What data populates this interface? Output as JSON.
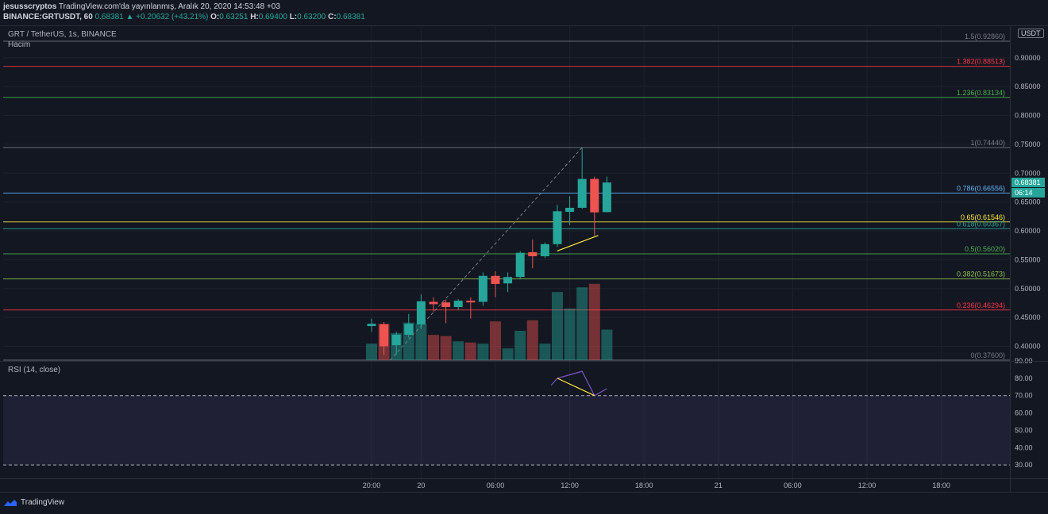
{
  "header": {
    "author": "jesusscryptos",
    "published": "TradingView.com'da yayınlanmış, Aralık 20, 2020 14:53:48 +03",
    "symbol": "BINANCE:GRTUSDT, 60",
    "last": "0.68381",
    "change": "▲ +0.20632 (+43.21%)",
    "o_label": "O:",
    "o": "0.63251",
    "h_label": "H:",
    "h": "0.69400",
    "l_label": "L:",
    "l": "0.63200",
    "c_label": "C:",
    "c": "0.68381"
  },
  "legend": {
    "symbol": "GRT / TetherUS, 1s, BINANCE",
    "volume": "Hacim",
    "rsi": "RSI (14, close)"
  },
  "price_axis": {
    "currency": "USDT",
    "last_price": "0.68381",
    "countdown": "06:14"
  },
  "footer": {
    "brand": "TradingView"
  },
  "colors": {
    "up": "#26a69a",
    "down": "#ef5350",
    "bg": "#131722",
    "rsi_band": "#7e57c2"
  },
  "chart_data": [
    {
      "type": "candlestick",
      "title": "GRT / TetherUS, 1s, BINANCE",
      "ylim": [
        0.376,
        0.9286
      ],
      "y_ticks": [
        "0.90000",
        "0.85000",
        "0.80000",
        "0.75000",
        "0.70000",
        "0.65000",
        "0.60000",
        "0.55000",
        "0.50000",
        "0.45000",
        "0.40000"
      ],
      "x_ticks": [
        {
          "i": 0,
          "label": "20:00"
        },
        {
          "i": 4,
          "label": "20"
        },
        {
          "i": 10,
          "label": "06:00"
        },
        {
          "i": 16,
          "label": "12:00"
        },
        {
          "i": 22,
          "label": "18:00"
        },
        {
          "i": 28,
          "label": "21"
        },
        {
          "i": 34,
          "label": "06:00"
        },
        {
          "i": 40,
          "label": "12:00"
        },
        {
          "i": 46,
          "label": "18:00"
        }
      ],
      "candles": [
        {
          "o": 0.435,
          "h": 0.448,
          "l": 0.425,
          "c": 0.439
        },
        {
          "o": 0.438,
          "h": 0.442,
          "l": 0.385,
          "c": 0.4
        },
        {
          "o": 0.402,
          "h": 0.425,
          "l": 0.385,
          "c": 0.42
        },
        {
          "o": 0.42,
          "h": 0.456,
          "l": 0.415,
          "c": 0.439
        },
        {
          "o": 0.438,
          "h": 0.49,
          "l": 0.43,
          "c": 0.478
        },
        {
          "o": 0.477,
          "h": 0.485,
          "l": 0.46,
          "c": 0.473
        },
        {
          "o": 0.476,
          "h": 0.481,
          "l": 0.44,
          "c": 0.468
        },
        {
          "o": 0.468,
          "h": 0.482,
          "l": 0.463,
          "c": 0.479
        },
        {
          "o": 0.479,
          "h": 0.485,
          "l": 0.448,
          "c": 0.476
        },
        {
          "o": 0.477,
          "h": 0.528,
          "l": 0.47,
          "c": 0.522
        },
        {
          "o": 0.522,
          "h": 0.53,
          "l": 0.485,
          "c": 0.508
        },
        {
          "o": 0.509,
          "h": 0.528,
          "l": 0.494,
          "c": 0.52
        },
        {
          "o": 0.52,
          "h": 0.565,
          "l": 0.516,
          "c": 0.562
        },
        {
          "o": 0.563,
          "h": 0.585,
          "l": 0.535,
          "c": 0.556
        },
        {
          "o": 0.556,
          "h": 0.58,
          "l": 0.553,
          "c": 0.577
        },
        {
          "o": 0.577,
          "h": 0.645,
          "l": 0.572,
          "c": 0.634
        },
        {
          "o": 0.633,
          "h": 0.66,
          "l": 0.61,
          "c": 0.64
        },
        {
          "o": 0.64,
          "h": 0.7444,
          "l": 0.638,
          "c": 0.69
        },
        {
          "o": 0.69,
          "h": 0.694,
          "l": 0.592,
          "c": 0.632
        },
        {
          "o": 0.6325,
          "h": 0.694,
          "l": 0.632,
          "c": 0.68381
        }
      ],
      "volume": [
        0.28,
        0.62,
        0.46,
        0.64,
        0.62,
        0.43,
        0.41,
        0.32,
        0.3,
        0.28,
        0.66,
        0.2,
        0.5,
        0.68,
        0.28,
        1.16,
        0.88,
        1.24,
        1.3,
        0.52
      ],
      "fib_levels": [
        {
          "label": "1.5(0.92860)",
          "value": 0.9286,
          "color": "#787b86"
        },
        {
          "label": "1.382(0.88513)",
          "value": 0.88513,
          "color": "#f23645"
        },
        {
          "label": "1.236(0.83134)",
          "value": 0.83134,
          "color": "#4caf50"
        },
        {
          "label": "1(0.74440)",
          "value": 0.7444,
          "color": "#787b86"
        },
        {
          "label": "0.786(0.66556)",
          "value": 0.66556,
          "color": "#64b5f6"
        },
        {
          "label": "0.65(0.61546)",
          "value": 0.61546,
          "color": "#ffeb3b"
        },
        {
          "label": "0.618(0.60367)",
          "value": 0.60367,
          "color": "#26a69a"
        },
        {
          "label": "0.5(0.56020)",
          "value": 0.5602,
          "color": "#4caf50"
        },
        {
          "label": "0.382(0.51673)",
          "value": 0.51673,
          "color": "#8bc34a"
        },
        {
          "label": "0.236(0.46294)",
          "value": 0.46294,
          "color": "#f23645"
        },
        {
          "label": "0(0.37600)",
          "value": 0.376,
          "color": "#787b86"
        }
      ]
    },
    {
      "type": "line",
      "title": "RSI (14, close)",
      "ylim": [
        20,
        90
      ],
      "y_ticks": [
        "90.00",
        "80.00",
        "70.00",
        "60.00",
        "50.00",
        "40.00",
        "30.00"
      ],
      "bands": [
        70,
        30
      ],
      "series": [
        {
          "i": 14.5,
          "v": 76
        },
        {
          "i": 15,
          "v": 80
        },
        {
          "i": 16,
          "v": 82
        },
        {
          "i": 17,
          "v": 84
        },
        {
          "i": 18,
          "v": 70
        },
        {
          "i": 19,
          "v": 74
        }
      ]
    }
  ]
}
